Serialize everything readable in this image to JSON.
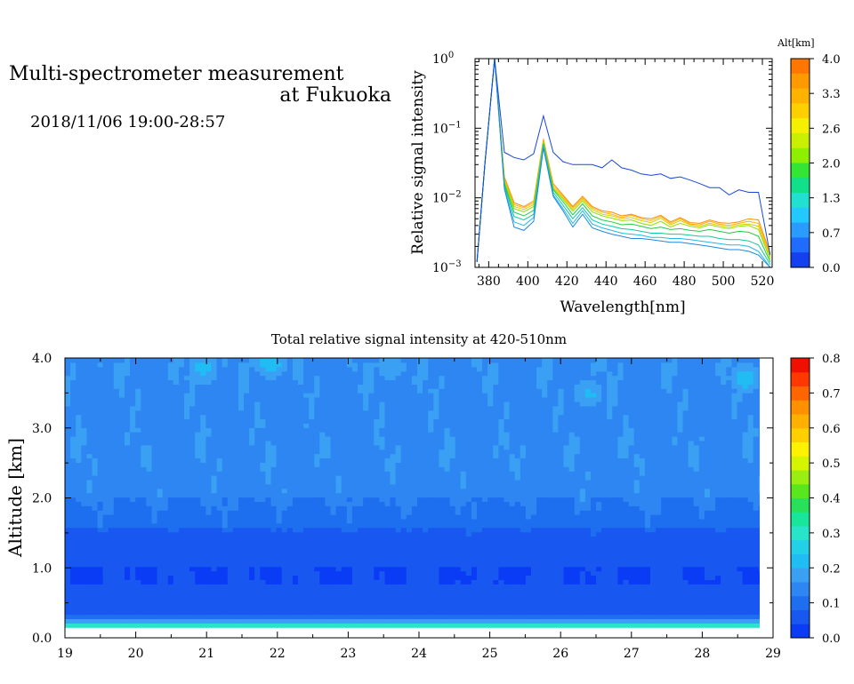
{
  "header": {
    "title_line1": "Multi-spectrometer measurement",
    "title_line2": "at Fukuoka",
    "subtitle": "2018/11/06 19:00-28:57"
  },
  "chart_data": [
    {
      "type": "line",
      "xlabel": "Wavelength[nm]",
      "ylabel": "Relative signal intensity",
      "xlim": [
        373,
        525
      ],
      "ylim": [
        0.001,
        1
      ],
      "yscale": "log",
      "x_ticks": [
        380,
        400,
        420,
        440,
        460,
        480,
        500,
        520
      ],
      "y_ticks": [
        {
          "base": "10",
          "exp": "0"
        },
        {
          "base": "10",
          "exp": "−1"
        },
        {
          "base": "10",
          "exp": "−2"
        },
        {
          "base": "10",
          "exp": "−3"
        }
      ],
      "colorbar": {
        "label": "Alt[km]",
        "ticks": [
          "4.0",
          "3.3",
          "2.6",
          "2.0",
          "1.3",
          "0.7",
          "0.0"
        ],
        "colors": [
          "#ff7700",
          "#ff9900",
          "#ffb300",
          "#ffd000",
          "#f5f000",
          "#c8f000",
          "#8ef000",
          "#33e633",
          "#11e08a",
          "#22e0d0",
          "#22c8ff",
          "#2a9cff",
          "#1f6cff",
          "#1540f0"
        ]
      },
      "x": [
        374,
        378,
        383,
        388,
        393,
        398,
        403,
        408,
        413,
        418,
        423,
        428,
        433,
        438,
        443,
        448,
        453,
        458,
        463,
        468,
        473,
        478,
        483,
        488,
        493,
        498,
        503,
        508,
        513,
        518,
        524
      ],
      "series": [
        {
          "color": "#ff8c00",
          "values": [
            0.0012,
            0.03,
            1.0,
            0.02,
            0.0085,
            0.0075,
            0.009,
            0.07,
            0.016,
            0.011,
            0.0075,
            0.0105,
            0.0075,
            0.0065,
            0.0062,
            0.0055,
            0.0058,
            0.0052,
            0.005,
            0.0056,
            0.0045,
            0.0052,
            0.0044,
            0.0043,
            0.0048,
            0.0044,
            0.0043,
            0.0045,
            0.005,
            0.0048,
            0.0016
          ]
        },
        {
          "color": "#ffb000",
          "values": [
            0.0012,
            0.03,
            1.0,
            0.019,
            0.008,
            0.0072,
            0.0085,
            0.068,
            0.015,
            0.0105,
            0.0072,
            0.01,
            0.0072,
            0.0062,
            0.0058,
            0.0052,
            0.0056,
            0.005,
            0.0047,
            0.0054,
            0.0043,
            0.005,
            0.0042,
            0.0041,
            0.0046,
            0.0042,
            0.004,
            0.0043,
            0.0046,
            0.0043,
            0.0015
          ]
        },
        {
          "color": "#d9cc00",
          "values": [
            0.0012,
            0.03,
            1.0,
            0.018,
            0.0075,
            0.0068,
            0.008,
            0.065,
            0.014,
            0.01,
            0.0068,
            0.0095,
            0.0068,
            0.0058,
            0.0055,
            0.005,
            0.0052,
            0.0047,
            0.0044,
            0.0051,
            0.0041,
            0.0047,
            0.0041,
            0.0039,
            0.0043,
            0.004,
            0.0038,
            0.0041,
            0.0042,
            0.0039,
            0.0014
          ]
        },
        {
          "color": "#8fe000",
          "values": [
            0.0012,
            0.03,
            1.0,
            0.017,
            0.007,
            0.0063,
            0.0075,
            0.062,
            0.0135,
            0.0095,
            0.0064,
            0.009,
            0.0063,
            0.0055,
            0.0051,
            0.0047,
            0.0048,
            0.0043,
            0.004,
            0.0046,
            0.0038,
            0.0043,
            0.0039,
            0.0037,
            0.0041,
            0.0038,
            0.0036,
            0.0039,
            0.004,
            0.0035,
            0.0013
          ]
        },
        {
          "color": "#20cc40",
          "values": [
            0.0012,
            0.03,
            1.0,
            0.016,
            0.0062,
            0.0055,
            0.0066,
            0.06,
            0.013,
            0.0088,
            0.0057,
            0.0082,
            0.0055,
            0.0048,
            0.0045,
            0.0041,
            0.0042,
            0.0039,
            0.0036,
            0.0038,
            0.0035,
            0.0036,
            0.0034,
            0.0033,
            0.0035,
            0.0033,
            0.0031,
            0.0033,
            0.0032,
            0.0028,
            0.0012
          ]
        },
        {
          "color": "#10c8a0",
          "values": [
            0.0012,
            0.03,
            1.0,
            0.015,
            0.0054,
            0.0048,
            0.0058,
            0.058,
            0.012,
            0.0078,
            0.005,
            0.0072,
            0.0048,
            0.0042,
            0.0039,
            0.0036,
            0.0035,
            0.0033,
            0.0031,
            0.0031,
            0.003,
            0.003,
            0.0029,
            0.0028,
            0.0028,
            0.0026,
            0.0025,
            0.0025,
            0.0024,
            0.0021,
            0.0011
          ]
        },
        {
          "color": "#20b8e8",
          "values": [
            0.0012,
            0.03,
            1.0,
            0.014,
            0.0045,
            0.004,
            0.0052,
            0.055,
            0.011,
            0.007,
            0.0043,
            0.0065,
            0.0042,
            0.0037,
            0.0034,
            0.0031,
            0.003,
            0.0029,
            0.0027,
            0.0027,
            0.0026,
            0.0026,
            0.0025,
            0.0024,
            0.0023,
            0.0022,
            0.0021,
            0.0021,
            0.002,
            0.0017,
            0.001
          ]
        },
        {
          "color": "#1e88e0",
          "values": [
            0.0012,
            0.03,
            1.0,
            0.0135,
            0.0038,
            0.0034,
            0.0046,
            0.052,
            0.0105,
            0.0065,
            0.0038,
            0.0058,
            0.0037,
            0.0033,
            0.003,
            0.0028,
            0.0026,
            0.0026,
            0.0025,
            0.0024,
            0.0023,
            0.0023,
            0.0022,
            0.0021,
            0.002,
            0.0019,
            0.0018,
            0.0018,
            0.0017,
            0.0015,
            0.001
          ]
        },
        {
          "color": "#1848d8",
          "values": [
            0.0012,
            0.03,
            1.0,
            0.045,
            0.038,
            0.035,
            0.043,
            0.15,
            0.045,
            0.033,
            0.03,
            0.03,
            0.03,
            0.027,
            0.035,
            0.027,
            0.025,
            0.022,
            0.021,
            0.022,
            0.019,
            0.02,
            0.018,
            0.016,
            0.014,
            0.014,
            0.011,
            0.013,
            0.012,
            0.012,
            0.0015
          ]
        }
      ]
    },
    {
      "type": "heatmap",
      "title": "Total relative signal intensity at 420-510nm",
      "ylabel": "Altitude [km]",
      "xlim": [
        19,
        29
      ],
      "ylim": [
        0,
        4
      ],
      "x_ticks": [
        "19",
        "20",
        "21",
        "22",
        "23",
        "24",
        "25",
        "26",
        "27",
        "28",
        "29"
      ],
      "y_ticks": [
        "0.0",
        "1.0",
        "2.0",
        "3.0",
        "4.0"
      ],
      "value_range": [
        0,
        0.8
      ],
      "colorbar": {
        "ticks": [
          "0.0",
          "0.1",
          "0.2",
          "0.3",
          "0.4",
          "0.5",
          "0.6",
          "0.7",
          "0.8"
        ],
        "colors": [
          "#0a3cf5",
          "#1858f0",
          "#1e6ef0",
          "#2e86f2",
          "#3aa0f4",
          "#20bcf4",
          "#22d0e8",
          "#28e4c8",
          "#18e69a",
          "#28e05a",
          "#5ae61c",
          "#9aef10",
          "#d4f400",
          "#fff200",
          "#ffd000",
          "#ffb000",
          "#ff9000",
          "#ff6600",
          "#ff3800",
          "#f01000"
        ]
      },
      "data_extent": {
        "time": [
          19.0,
          28.95
        ],
        "altitude": [
          0.15,
          4.0
        ]
      },
      "altitude_profile": [
        {
          "alt": 0.15,
          "value": 0.41
        },
        {
          "alt": 0.2,
          "value": 0.26
        },
        {
          "alt": 0.25,
          "value": 0.165
        },
        {
          "alt": 0.3,
          "value": 0.12
        },
        {
          "alt": 0.35,
          "value": 0.07
        },
        {
          "alt": 0.45,
          "value": 0.06
        },
        {
          "alt": 0.6,
          "value": 0.045
        },
        {
          "alt": 0.8,
          "value": 0.04
        },
        {
          "alt": 1.0,
          "value": 0.04
        },
        {
          "alt": 1.2,
          "value": 0.048
        },
        {
          "alt": 1.4,
          "value": 0.06
        },
        {
          "alt": 1.6,
          "value": 0.08
        },
        {
          "alt": 1.8,
          "value": 0.1
        },
        {
          "alt": 2.0,
          "value": 0.12
        },
        {
          "alt": 2.3,
          "value": 0.13
        },
        {
          "alt": 2.6,
          "value": 0.14
        },
        {
          "alt": 3.0,
          "value": 0.135
        },
        {
          "alt": 3.3,
          "value": 0.14
        },
        {
          "alt": 3.6,
          "value": 0.14
        },
        {
          "alt": 3.9,
          "value": 0.145
        },
        {
          "alt": 4.0,
          "value": 0.13
        }
      ],
      "highlights": [
        {
          "time": 21.9,
          "alt": 3.95,
          "value": 0.24
        },
        {
          "time": 20.95,
          "alt": 3.85,
          "value": 0.22
        },
        {
          "time": 28.6,
          "alt": 3.7,
          "value": 0.23
        },
        {
          "time": 23.6,
          "alt": 3.9,
          "value": 0.2
        },
        {
          "time": 26.4,
          "alt": 3.5,
          "value": 0.21
        }
      ]
    }
  ]
}
